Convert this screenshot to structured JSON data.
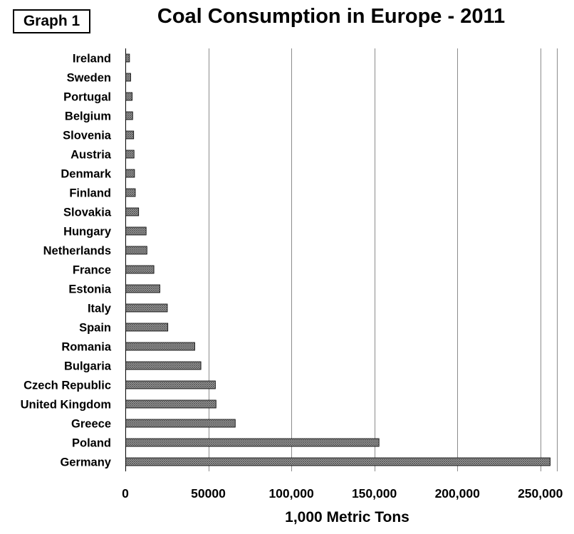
{
  "tag": "Graph 1",
  "chart_data": {
    "type": "bar",
    "orientation": "horizontal",
    "title": "Coal Consumption in Europe - 2011",
    "xlabel": "1,000 Metric Tons",
    "ylabel": "",
    "categories": [
      "Ireland",
      "Sweden",
      "Portugal",
      "Belgium",
      "Slovenia",
      "Austria",
      "Denmark",
      "Finland",
      "Slovakia",
      "Hungary",
      "Netherlands",
      "France",
      "Estonia",
      "Italy",
      "Spain",
      "Romania",
      "Bulgaria",
      "Czech Republic",
      "United Kingdom",
      "Greece",
      "Poland",
      "Germany"
    ],
    "values": [
      2300,
      3000,
      3900,
      4200,
      4800,
      5000,
      5300,
      5800,
      7800,
      12300,
      12800,
      17000,
      20600,
      25100,
      25400,
      41600,
      45300,
      54000,
      54400,
      66000,
      152600,
      255700
    ],
    "xlim": [
      0,
      260000
    ],
    "xticks": [
      0,
      50000,
      100000,
      150000,
      200000,
      250000
    ],
    "xtick_labels": [
      "0",
      "50000",
      "100,000",
      "150,000",
      "200,000",
      "250,000"
    ],
    "grid": true,
    "legend": "none",
    "colors": {
      "bar_fill": "#555555",
      "bar_stroke": "#000000",
      "grid": "#8c8c8c",
      "text": "#000000"
    }
  }
}
